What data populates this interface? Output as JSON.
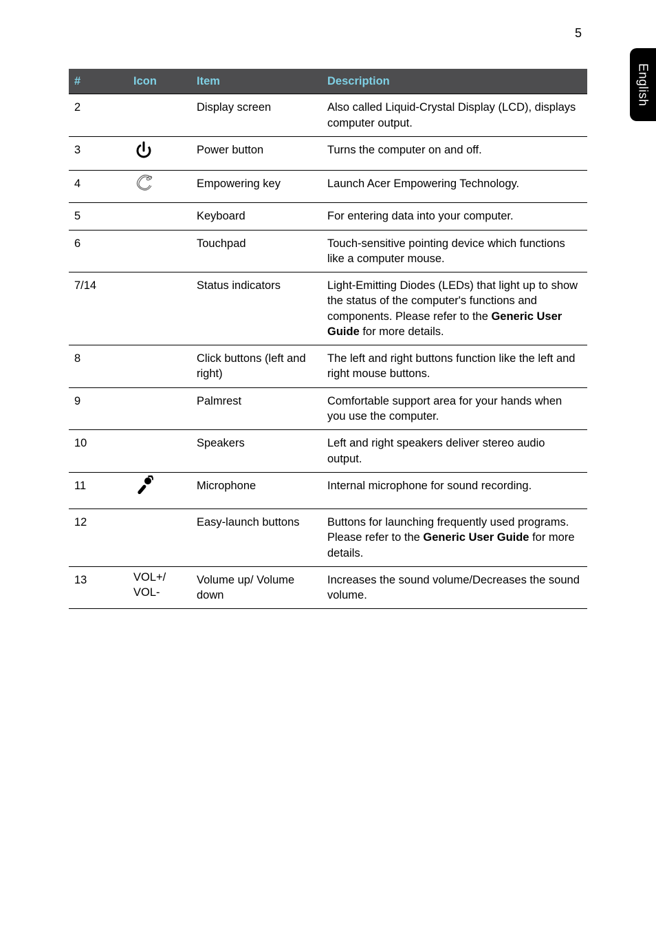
{
  "page_number": "5",
  "side_tab": "English",
  "table": {
    "header": {
      "num": "#",
      "icon": "Icon",
      "item": "Item",
      "description": "Description"
    },
    "rows": [
      {
        "num": "2",
        "icon": "",
        "item": "Display screen",
        "desc_pre": "Also called Liquid-Crystal Display (LCD), displays computer output.",
        "desc_bold": "",
        "desc_post": ""
      },
      {
        "num": "3",
        "icon": "power-icon",
        "item": "Power button",
        "desc_pre": "Turns the computer on and off.",
        "desc_bold": "",
        "desc_post": ""
      },
      {
        "num": "4",
        "icon": "empowering-icon",
        "item": "Empowering key",
        "desc_pre": "Launch Acer Empowering Technology.",
        "desc_bold": "",
        "desc_post": ""
      },
      {
        "num": "5",
        "icon": "",
        "item": "Keyboard",
        "desc_pre": "For entering data into your computer.",
        "desc_bold": "",
        "desc_post": ""
      },
      {
        "num": "6",
        "icon": "",
        "item": "Touchpad",
        "desc_pre": "Touch-sensitive pointing device which functions like a computer mouse.",
        "desc_bold": "",
        "desc_post": ""
      },
      {
        "num": "7/14",
        "icon": "",
        "item": "Status indicators",
        "desc_pre": "Light-Emitting Diodes (LEDs) that light up to show the status of the computer's functions and components. Please refer to the ",
        "desc_bold": "Generic User Guide",
        "desc_post": " for more details."
      },
      {
        "num": "8",
        "icon": "",
        "item": "Click buttons (left and right)",
        "desc_pre": "The left and right buttons function like the left and right mouse buttons.",
        "desc_bold": "",
        "desc_post": ""
      },
      {
        "num": "9",
        "icon": "",
        "item": "Palmrest",
        "desc_pre": "Comfortable support area for your hands when you use the computer.",
        "desc_bold": "",
        "desc_post": ""
      },
      {
        "num": "10",
        "icon": "",
        "item": "Speakers",
        "desc_pre": "Left and right speakers deliver stereo audio output.",
        "desc_bold": "",
        "desc_post": ""
      },
      {
        "num": "11",
        "icon": "microphone-icon",
        "item": "Microphone",
        "desc_pre": "Internal microphone for sound recording.",
        "desc_bold": "",
        "desc_post": ""
      },
      {
        "num": "12",
        "icon": "",
        "item": "Easy-launch buttons",
        "desc_pre": "Buttons for launching frequently used programs. Please refer to the ",
        "desc_bold": "Generic User Guide",
        "desc_post": " for more details."
      },
      {
        "num": "13",
        "icon": "VOL+/\nVOL-",
        "item": "Volume up/ Volume down",
        "desc_pre": "Increases the sound volume/Decreases the sound volume.",
        "desc_bold": "",
        "desc_post": ""
      }
    ]
  }
}
